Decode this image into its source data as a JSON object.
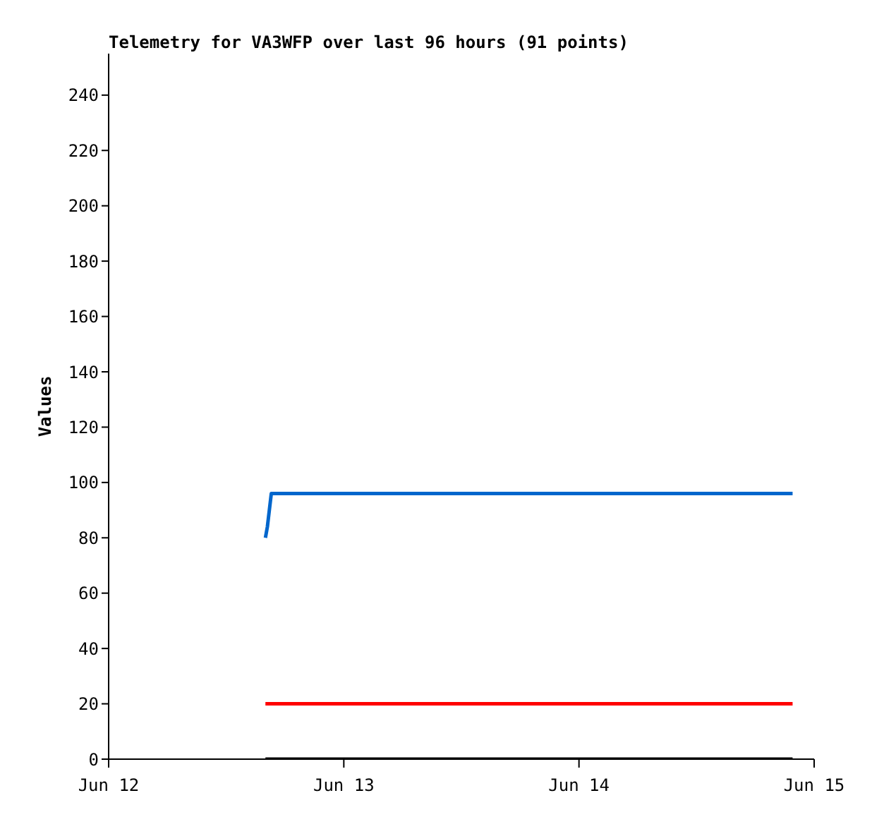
{
  "chart_data": {
    "type": "line",
    "title": "Telemetry for VA3WFP over last 96 hours (91 points)",
    "ylabel": "Values",
    "xlim": [
      "--06-12",
      "--06-15"
    ],
    "xticks": [
      {
        "value": "--06-12",
        "label": "Jun 12"
      },
      {
        "value": "--06-13",
        "label": "Jun 13"
      },
      {
        "value": "--06-14",
        "label": "Jun 14"
      },
      {
        "value": "--06-15",
        "label": "Jun 15"
      }
    ],
    "grid": false,
    "legend": false,
    "ylim": [
      0,
      255
    ],
    "yticks": [
      0,
      20,
      40,
      60,
      80,
      100,
      120,
      140,
      160,
      180,
      200,
      220,
      240
    ],
    "marker": "none",
    "line_style": "solid",
    "series": [
      {
        "color": "#0066cc",
        "x": [
          "--06-12T16:00",
          "--06-12T16:12",
          "--06-12T16:24",
          "--06-12T16:36",
          "--06-14T21:48"
        ],
        "values": [
          80,
          84,
          90,
          96,
          96
        ]
      },
      {
        "color": "#ff0000",
        "x": [
          "--06-12T16:00",
          "--06-14T21:48"
        ],
        "values": [
          20,
          20
        ]
      },
      {
        "color": "#000000",
        "x": [
          "--06-12T16:00",
          "--06-14T21:48"
        ],
        "values": [
          0,
          0
        ]
      }
    ]
  }
}
